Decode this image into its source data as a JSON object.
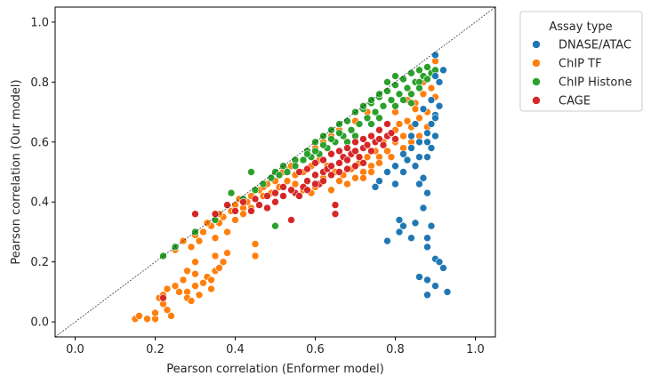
{
  "chart_data": {
    "type": "scatter",
    "xlabel": "Pearson correlation (Enformer model)",
    "ylabel": "Pearson correlation (Our model)",
    "xlim": [
      -0.05,
      1.05
    ],
    "ylim": [
      -0.05,
      1.05
    ],
    "xticks": [
      "0.0",
      "0.2",
      "0.4",
      "0.6",
      "0.8",
      "1.0"
    ],
    "yticks": [
      "0.0",
      "0.2",
      "0.4",
      "0.6",
      "0.8",
      "1.0"
    ],
    "diagonal": [
      [
        -0.05,
        -0.05
      ],
      [
        1.05,
        1.05
      ]
    ],
    "legend": {
      "title": "Assay type",
      "placement": "outside-right"
    },
    "series": [
      {
        "name": "ChIP TF",
        "color": "#ff7f0e",
        "points": [
          [
            0.15,
            0.01
          ],
          [
            0.16,
            0.02
          ],
          [
            0.18,
            0.01
          ],
          [
            0.2,
            0.01
          ],
          [
            0.2,
            0.03
          ],
          [
            0.21,
            0.08
          ],
          [
            0.22,
            0.09
          ],
          [
            0.23,
            0.11
          ],
          [
            0.22,
            0.06
          ],
          [
            0.23,
            0.04
          ],
          [
            0.24,
            0.02
          ],
          [
            0.25,
            0.12
          ],
          [
            0.26,
            0.1
          ],
          [
            0.27,
            0.14
          ],
          [
            0.28,
            0.1
          ],
          [
            0.28,
            0.08
          ],
          [
            0.29,
            0.07
          ],
          [
            0.3,
            0.12
          ],
          [
            0.3,
            0.16
          ],
          [
            0.31,
            0.09
          ],
          [
            0.32,
            0.13
          ],
          [
            0.33,
            0.15
          ],
          [
            0.34,
            0.11
          ],
          [
            0.34,
            0.14
          ],
          [
            0.35,
            0.17
          ],
          [
            0.36,
            0.18
          ],
          [
            0.35,
            0.22
          ],
          [
            0.37,
            0.2
          ],
          [
            0.38,
            0.23
          ],
          [
            0.28,
            0.17
          ],
          [
            0.3,
            0.2
          ],
          [
            0.29,
            0.25
          ],
          [
            0.31,
            0.27
          ],
          [
            0.32,
            0.3
          ],
          [
            0.34,
            0.32
          ],
          [
            0.35,
            0.28
          ],
          [
            0.36,
            0.33
          ],
          [
            0.37,
            0.35
          ],
          [
            0.38,
            0.3
          ],
          [
            0.39,
            0.37
          ],
          [
            0.4,
            0.34
          ],
          [
            0.4,
            0.39
          ],
          [
            0.42,
            0.38
          ],
          [
            0.43,
            0.4
          ],
          [
            0.44,
            0.42
          ],
          [
            0.45,
            0.26
          ],
          [
            0.45,
            0.22
          ],
          [
            0.33,
            0.33
          ],
          [
            0.36,
            0.36
          ],
          [
            0.41,
            0.41
          ],
          [
            0.46,
            0.44
          ],
          [
            0.47,
            0.45
          ],
          [
            0.48,
            0.46
          ],
          [
            0.5,
            0.47
          ],
          [
            0.51,
            0.49
          ],
          [
            0.52,
            0.5
          ],
          [
            0.53,
            0.51
          ],
          [
            0.54,
            0.52
          ],
          [
            0.55,
            0.46
          ],
          [
            0.56,
            0.42
          ],
          [
            0.57,
            0.44
          ],
          [
            0.58,
            0.47
          ],
          [
            0.59,
            0.43
          ],
          [
            0.6,
            0.45
          ],
          [
            0.62,
            0.48
          ],
          [
            0.64,
            0.44
          ],
          [
            0.66,
            0.47
          ],
          [
            0.68,
            0.46
          ],
          [
            0.7,
            0.48
          ],
          [
            0.72,
            0.5
          ],
          [
            0.74,
            0.52
          ],
          [
            0.76,
            0.55
          ],
          [
            0.78,
            0.57
          ],
          [
            0.8,
            0.6
          ],
          [
            0.82,
            0.62
          ],
          [
            0.84,
            0.65
          ],
          [
            0.86,
            0.68
          ],
          [
            0.88,
            0.7
          ],
          [
            0.9,
            0.75
          ],
          [
            0.91,
            0.8
          ],
          [
            0.9,
            0.87
          ],
          [
            0.87,
            0.76
          ],
          [
            0.85,
            0.73
          ],
          [
            0.83,
            0.67
          ],
          [
            0.8,
            0.64
          ],
          [
            0.77,
            0.6
          ],
          [
            0.75,
            0.57
          ],
          [
            0.73,
            0.55
          ],
          [
            0.71,
            0.53
          ],
          [
            0.69,
            0.51
          ],
          [
            0.67,
            0.49
          ],
          [
            0.65,
            0.5
          ],
          [
            0.63,
            0.52
          ],
          [
            0.61,
            0.54
          ],
          [
            0.59,
            0.52
          ],
          [
            0.57,
            0.5
          ],
          [
            0.55,
            0.49
          ],
          [
            0.53,
            0.47
          ],
          [
            0.51,
            0.45
          ],
          [
            0.49,
            0.43
          ],
          [
            0.47,
            0.42
          ],
          [
            0.44,
            0.38
          ],
          [
            0.42,
            0.36
          ],
          [
            0.88,
            0.65
          ],
          [
            0.86,
            0.62
          ],
          [
            0.84,
            0.6
          ],
          [
            0.82,
            0.58
          ],
          [
            0.79,
            0.55
          ],
          [
            0.76,
            0.53
          ],
          [
            0.74,
            0.5
          ],
          [
            0.72,
            0.48
          ],
          [
            0.78,
            0.62
          ],
          [
            0.81,
            0.66
          ],
          [
            0.85,
            0.71
          ],
          [
            0.89,
            0.78
          ],
          [
            0.87,
            0.8
          ],
          [
            0.83,
            0.74
          ],
          [
            0.8,
            0.7
          ],
          [
            0.6,
            0.58
          ],
          [
            0.62,
            0.6
          ],
          [
            0.64,
            0.62
          ],
          [
            0.66,
            0.64
          ],
          [
            0.7,
            0.67
          ],
          [
            0.73,
            0.7
          ],
          [
            0.27,
            0.27
          ],
          [
            0.25,
            0.24
          ],
          [
            0.3,
            0.29
          ]
        ]
      },
      {
        "name": "ChIP Histone",
        "color": "#2ca02c",
        "points": [
          [
            0.22,
            0.22
          ],
          [
            0.25,
            0.25
          ],
          [
            0.3,
            0.3
          ],
          [
            0.35,
            0.34
          ],
          [
            0.39,
            0.43
          ],
          [
            0.42,
            0.41
          ],
          [
            0.45,
            0.44
          ],
          [
            0.5,
            0.5
          ],
          [
            0.52,
            0.52
          ],
          [
            0.55,
            0.54
          ],
          [
            0.58,
            0.57
          ],
          [
            0.6,
            0.6
          ],
          [
            0.62,
            0.62
          ],
          [
            0.64,
            0.64
          ],
          [
            0.66,
            0.66
          ],
          [
            0.68,
            0.67
          ],
          [
            0.7,
            0.7
          ],
          [
            0.72,
            0.71
          ],
          [
            0.74,
            0.73
          ],
          [
            0.76,
            0.75
          ],
          [
            0.78,
            0.77
          ],
          [
            0.8,
            0.79
          ],
          [
            0.82,
            0.81
          ],
          [
            0.84,
            0.83
          ],
          [
            0.86,
            0.84
          ],
          [
            0.88,
            0.85
          ],
          [
            0.89,
            0.83
          ],
          [
            0.87,
            0.82
          ],
          [
            0.85,
            0.8
          ],
          [
            0.83,
            0.78
          ],
          [
            0.81,
            0.76
          ],
          [
            0.79,
            0.74
          ],
          [
            0.77,
            0.72
          ],
          [
            0.75,
            0.7
          ],
          [
            0.73,
            0.68
          ],
          [
            0.71,
            0.66
          ],
          [
            0.69,
            0.64
          ],
          [
            0.67,
            0.62
          ],
          [
            0.65,
            0.6
          ],
          [
            0.63,
            0.58
          ],
          [
            0.61,
            0.56
          ],
          [
            0.59,
            0.55
          ],
          [
            0.57,
            0.54
          ],
          [
            0.55,
            0.52
          ],
          [
            0.53,
            0.5
          ],
          [
            0.51,
            0.49
          ],
          [
            0.49,
            0.48
          ],
          [
            0.47,
            0.46
          ],
          [
            0.44,
            0.5
          ],
          [
            0.5,
            0.32
          ],
          [
            0.78,
            0.8
          ],
          [
            0.8,
            0.82
          ],
          [
            0.86,
            0.8
          ],
          [
            0.84,
            0.76
          ],
          [
            0.82,
            0.74
          ],
          [
            0.8,
            0.72
          ],
          [
            0.76,
            0.68
          ],
          [
            0.74,
            0.66
          ],
          [
            0.7,
            0.62
          ],
          [
            0.68,
            0.6
          ],
          [
            0.9,
            0.84
          ],
          [
            0.88,
            0.81
          ],
          [
            0.86,
            0.78
          ],
          [
            0.84,
            0.73
          ],
          [
            0.72,
            0.72
          ],
          [
            0.74,
            0.74
          ],
          [
            0.76,
            0.76
          ],
          [
            0.66,
            0.63
          ],
          [
            0.64,
            0.61
          ],
          [
            0.62,
            0.59
          ],
          [
            0.6,
            0.57
          ],
          [
            0.58,
            0.56
          ]
        ]
      },
      {
        "name": "CAGE",
        "color": "#d62728",
        "points": [
          [
            0.22,
            0.08
          ],
          [
            0.3,
            0.36
          ],
          [
            0.35,
            0.36
          ],
          [
            0.38,
            0.39
          ],
          [
            0.4,
            0.37
          ],
          [
            0.42,
            0.4
          ],
          [
            0.45,
            0.41
          ],
          [
            0.48,
            0.42
          ],
          [
            0.5,
            0.4
          ],
          [
            0.52,
            0.42
          ],
          [
            0.54,
            0.34
          ],
          [
            0.55,
            0.43
          ],
          [
            0.57,
            0.45
          ],
          [
            0.58,
            0.47
          ],
          [
            0.6,
            0.49
          ],
          [
            0.61,
            0.46
          ],
          [
            0.62,
            0.5
          ],
          [
            0.63,
            0.51
          ],
          [
            0.64,
            0.52
          ],
          [
            0.65,
            0.39
          ],
          [
            0.65,
            0.36
          ],
          [
            0.66,
            0.53
          ],
          [
            0.67,
            0.55
          ],
          [
            0.68,
            0.54
          ],
          [
            0.69,
            0.56
          ],
          [
            0.7,
            0.57
          ],
          [
            0.71,
            0.55
          ],
          [
            0.72,
            0.58
          ],
          [
            0.73,
            0.59
          ],
          [
            0.74,
            0.57
          ],
          [
            0.75,
            0.6
          ],
          [
            0.76,
            0.61
          ],
          [
            0.77,
            0.59
          ],
          [
            0.78,
            0.62
          ],
          [
            0.79,
            0.63
          ],
          [
            0.8,
            0.61
          ],
          [
            0.72,
            0.53
          ],
          [
            0.7,
            0.52
          ],
          [
            0.68,
            0.51
          ],
          [
            0.66,
            0.5
          ],
          [
            0.64,
            0.49
          ],
          [
            0.62,
            0.47
          ],
          [
            0.6,
            0.46
          ],
          [
            0.58,
            0.44
          ],
          [
            0.56,
            0.42
          ],
          [
            0.54,
            0.44
          ],
          [
            0.52,
            0.45
          ],
          [
            0.5,
            0.43
          ],
          [
            0.48,
            0.38
          ],
          [
            0.46,
            0.39
          ],
          [
            0.44,
            0.37
          ],
          [
            0.74,
            0.62
          ],
          [
            0.76,
            0.64
          ],
          [
            0.78,
            0.66
          ],
          [
            0.72,
            0.61
          ],
          [
            0.7,
            0.6
          ],
          [
            0.68,
            0.58
          ],
          [
            0.66,
            0.57
          ],
          [
            0.64,
            0.56
          ],
          [
            0.62,
            0.54
          ],
          [
            0.6,
            0.53
          ],
          [
            0.58,
            0.51
          ],
          [
            0.56,
            0.5
          ]
        ]
      },
      {
        "name": "DNASE/ATAC",
        "color": "#1f77b4",
        "points": [
          [
            0.78,
            0.27
          ],
          [
            0.81,
            0.3
          ],
          [
            0.81,
            0.34
          ],
          [
            0.82,
            0.32
          ],
          [
            0.84,
            0.28
          ],
          [
            0.85,
            0.33
          ],
          [
            0.86,
            0.15
          ],
          [
            0.88,
            0.09
          ],
          [
            0.88,
            0.14
          ],
          [
            0.88,
            0.28
          ],
          [
            0.88,
            0.25
          ],
          [
            0.89,
            0.32
          ],
          [
            0.9,
            0.21
          ],
          [
            0.9,
            0.12
          ],
          [
            0.91,
            0.2
          ],
          [
            0.92,
            0.18
          ],
          [
            0.93,
            0.1
          ],
          [
            0.87,
            0.38
          ],
          [
            0.88,
            0.43
          ],
          [
            0.86,
            0.46
          ],
          [
            0.87,
            0.48
          ],
          [
            0.85,
            0.52
          ],
          [
            0.83,
            0.54
          ],
          [
            0.8,
            0.52
          ],
          [
            0.82,
            0.56
          ],
          [
            0.84,
            0.58
          ],
          [
            0.86,
            0.6
          ],
          [
            0.88,
            0.63
          ],
          [
            0.89,
            0.66
          ],
          [
            0.9,
            0.69
          ],
          [
            0.9,
            0.89
          ],
          [
            0.9,
            0.82
          ],
          [
            0.91,
            0.8
          ],
          [
            0.92,
            0.84
          ],
          [
            0.89,
            0.74
          ],
          [
            0.87,
            0.71
          ],
          [
            0.88,
            0.55
          ],
          [
            0.89,
            0.58
          ],
          [
            0.9,
            0.62
          ],
          [
            0.85,
            0.66
          ],
          [
            0.78,
            0.5
          ],
          [
            0.76,
            0.47
          ],
          [
            0.75,
            0.45
          ],
          [
            0.8,
            0.46
          ],
          [
            0.82,
            0.5
          ],
          [
            0.86,
            0.55
          ],
          [
            0.88,
            0.6
          ],
          [
            0.9,
            0.68
          ],
          [
            0.91,
            0.72
          ],
          [
            0.84,
            0.62
          ]
        ]
      }
    ]
  }
}
